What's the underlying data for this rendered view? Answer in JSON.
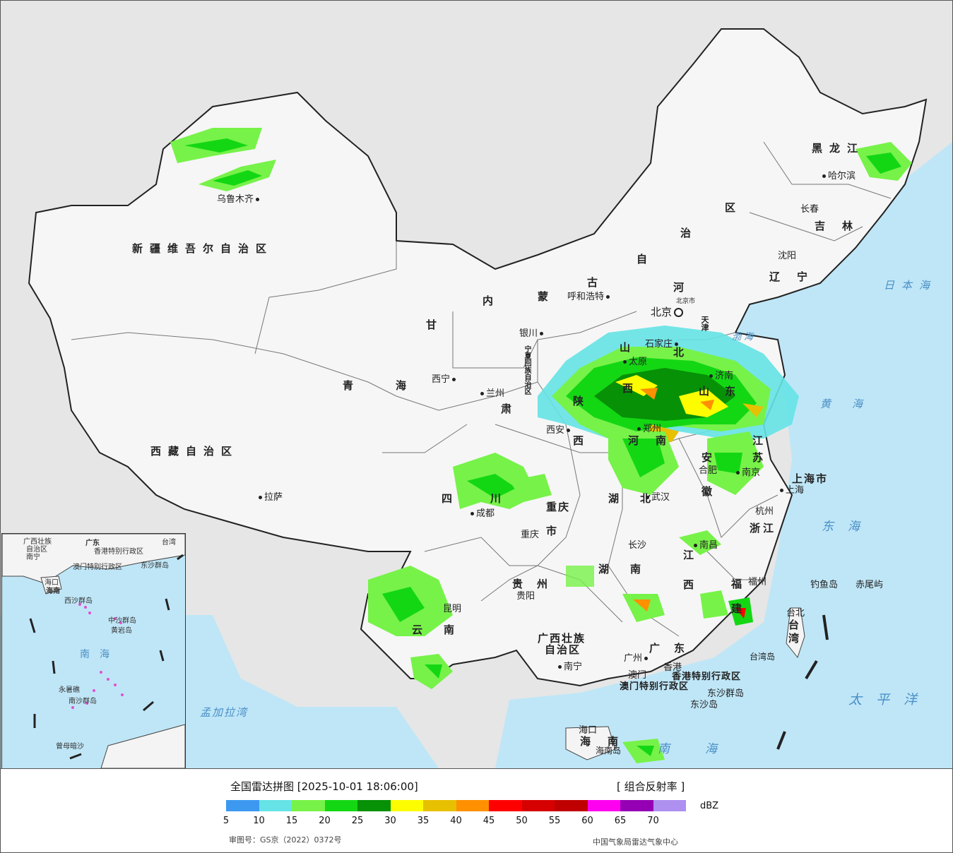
{
  "legend": {
    "title": "全国雷达拼图 [2025-10-01 18:06:00]",
    "product": "[ 组合反射率 ]",
    "unit": "dBZ",
    "ticks": [
      "5",
      "10",
      "15",
      "20",
      "25",
      "30",
      "35",
      "40",
      "45",
      "50",
      "55",
      "60",
      "65",
      "70"
    ],
    "colors": [
      "#3d99f0",
      "#65e3e6",
      "#77f249",
      "#14d714",
      "#079107",
      "#fdfd00",
      "#e7c000",
      "#ff9000",
      "#ff0000",
      "#d60000",
      "#c00000",
      "#ff00f0",
      "#9600b4",
      "#ad90f0"
    ],
    "approval": "审图号：GS京（2022）0372号",
    "source": "中国气象局雷达气象中心"
  },
  "provinces": [
    {
      "id": "xinjiang",
      "text": "新疆维吾尔自治区"
    },
    {
      "id": "xizang",
      "text": "西藏自治区"
    },
    {
      "id": "qinghai",
      "text": "青海"
    },
    {
      "id": "gansu",
      "text": "甘"
    },
    {
      "id": "gansu2",
      "text": "肃"
    },
    {
      "id": "neimenggu",
      "text": "内"
    },
    {
      "id": "neimenggu2",
      "text": "蒙"
    },
    {
      "id": "neimenggu3",
      "text": "古"
    },
    {
      "id": "neimenggu4",
      "text": "自"
    },
    {
      "id": "neimenggu5",
      "text": "治"
    },
    {
      "id": "neimenggu6",
      "text": "区"
    },
    {
      "id": "heilongjiang",
      "text": "黑龙江"
    },
    {
      "id": "jilin",
      "text": "吉林"
    },
    {
      "id": "liaoning",
      "text": "辽宁"
    },
    {
      "id": "hebei",
      "text": "河"
    },
    {
      "id": "hebei2",
      "text": "北"
    },
    {
      "id": "shanxi",
      "text": "山"
    },
    {
      "id": "shanxi2",
      "text": "西"
    },
    {
      "id": "shandong",
      "text": "山东"
    },
    {
      "id": "shaanxi",
      "text": "陕"
    },
    {
      "id": "shaanxi2",
      "text": "西"
    },
    {
      "id": "henan",
      "text": "河南"
    },
    {
      "id": "jiangsu",
      "text": "江"
    },
    {
      "id": "jiangsu2",
      "text": "苏"
    },
    {
      "id": "anhui",
      "text": "安"
    },
    {
      "id": "anhui2",
      "text": "徽"
    },
    {
      "id": "shanghai",
      "text": "上海市"
    },
    {
      "id": "sichuan",
      "text": "四川"
    },
    {
      "id": "chongqing",
      "text": "重庆"
    },
    {
      "id": "chongqing2",
      "text": "市"
    },
    {
      "id": "hubei",
      "text": "湖北"
    },
    {
      "id": "zhejiang",
      "text": "浙江"
    },
    {
      "id": "hunan",
      "text": "湖南"
    },
    {
      "id": "jiangxi",
      "text": "江"
    },
    {
      "id": "jiangxi2",
      "text": "西"
    },
    {
      "id": "guizhou",
      "text": "贵州"
    },
    {
      "id": "fujian",
      "text": "福"
    },
    {
      "id": "fujian2",
      "text": "建"
    },
    {
      "id": "yunnan",
      "text": "云南"
    },
    {
      "id": "guangxi",
      "text": "广西壮族"
    },
    {
      "id": "guangxi2",
      "text": "自治区"
    },
    {
      "id": "guangdong",
      "text": "广东"
    },
    {
      "id": "hainan",
      "text": "海南"
    },
    {
      "id": "taiwan",
      "text": "台湾"
    },
    {
      "id": "ningxia",
      "text": "宁夏回族自治区"
    },
    {
      "id": "tianjin",
      "text": "天津"
    },
    {
      "id": "hk",
      "text": "香港特别行政区"
    },
    {
      "id": "macau",
      "text": "澳门特别行政区"
    }
  ],
  "cities": [
    {
      "id": "wulumuqi",
      "text": "乌鲁木齐"
    },
    {
      "id": "lasa",
      "text": "拉萨"
    },
    {
      "id": "xining",
      "text": "西宁"
    },
    {
      "id": "lanzhou",
      "text": "兰州"
    },
    {
      "id": "yinchuan",
      "text": "银川"
    },
    {
      "id": "huhehaote",
      "text": "呼和浩特"
    },
    {
      "id": "beijing",
      "text": "北京"
    },
    {
      "id": "shijiazhuang",
      "text": "石家庄"
    },
    {
      "id": "taiyuan",
      "text": "太原"
    },
    {
      "id": "jinan",
      "text": "济南"
    },
    {
      "id": "xian",
      "text": "西安"
    },
    {
      "id": "zhengzhou",
      "text": "郑州"
    },
    {
      "id": "hefei",
      "text": "合肥"
    },
    {
      "id": "nanjing",
      "text": "南京"
    },
    {
      "id": "shanghai_c",
      "text": "上海"
    },
    {
      "id": "hangzhou",
      "text": "杭州"
    },
    {
      "id": "wuhan",
      "text": "武汉"
    },
    {
      "id": "chengdu",
      "text": "成都"
    },
    {
      "id": "chongqing_c",
      "text": "重庆"
    },
    {
      "id": "changsha",
      "text": "长沙"
    },
    {
      "id": "nanchang",
      "text": "南昌"
    },
    {
      "id": "fuzhou",
      "text": "福州"
    },
    {
      "id": "taibei",
      "text": "台北"
    },
    {
      "id": "guiyang",
      "text": "贵阳"
    },
    {
      "id": "kunming",
      "text": "昆明"
    },
    {
      "id": "nanning",
      "text": "南宁"
    },
    {
      "id": "guangzhou",
      "text": "广州"
    },
    {
      "id": "xianggang",
      "text": "香港"
    },
    {
      "id": "aomen",
      "text": "澳门"
    },
    {
      "id": "haikou",
      "text": "海口"
    },
    {
      "id": "haerbin",
      "text": "哈尔滨"
    },
    {
      "id": "changchun",
      "text": "长春"
    },
    {
      "id": "shenyang",
      "text": "沈阳"
    }
  ],
  "seas": [
    {
      "id": "ribenhai",
      "text": "日本海"
    },
    {
      "id": "bohai",
      "text": "渤海"
    },
    {
      "id": "huanghai",
      "text": "黄海"
    },
    {
      "id": "donghai",
      "text": "东海"
    },
    {
      "id": "taipingyang",
      "text": "太平洋"
    },
    {
      "id": "nanhai",
      "text": "南海"
    },
    {
      "id": "mengjialawan",
      "text": "孟加拉湾"
    }
  ],
  "islands": [
    {
      "id": "diaoyudao",
      "text": "钓鱼岛"
    },
    {
      "id": "chiweiyu",
      "text": "赤尾屿"
    },
    {
      "id": "taiwandao",
      "text": "台湾岛"
    },
    {
      "id": "dongshaqundao",
      "text": "东沙群岛"
    },
    {
      "id": "dongshadao",
      "text": "东沙岛"
    },
    {
      "id": "hainandao",
      "text": "海南岛"
    },
    {
      "id": "beijingshi",
      "text": "北京市"
    }
  ],
  "inset": {
    "labels": [
      "广西壮族",
      "自治区",
      "广东",
      "南宁",
      "香港特别行政区",
      "澳门特别行政区",
      "海口",
      "海南",
      "台湾",
      "东沙群岛",
      "西沙群岛",
      "中沙群岛",
      "黄岩岛",
      "南海",
      "永暑礁",
      "南沙群岛",
      "曾母暗沙"
    ]
  }
}
